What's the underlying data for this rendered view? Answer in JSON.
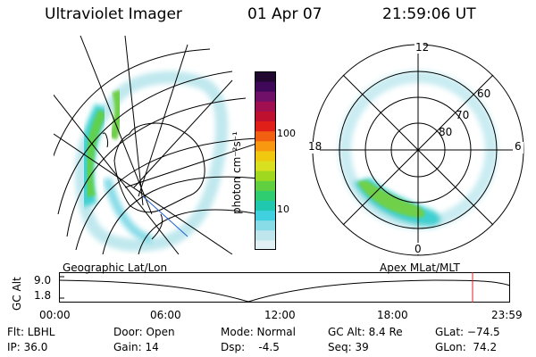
{
  "header": {
    "title": "Ultraviolet Imager",
    "date": "01 Apr 07",
    "time": "21:59:06 UT"
  },
  "colorbar": {
    "label": "photon cm⁻²s⁻¹",
    "ticks": [
      {
        "label": "100",
        "value": 100
      },
      {
        "label": "10",
        "value": 10
      }
    ],
    "colors": [
      "#e0f0f4",
      "#bfe6ec",
      "#88dce8",
      "#40d0e0",
      "#20c8b0",
      "#30cc70",
      "#60d040",
      "#a0d820",
      "#d8e020",
      "#f0c810",
      "#f89810",
      "#f06010",
      "#e02018",
      "#c01030",
      "#a01050",
      "#701068",
      "#400858",
      "#200830"
    ]
  },
  "geo_plot": {
    "label": "Geographic Lat/Lon"
  },
  "polar_plot": {
    "label": "Apex MLat/MLT",
    "mlt_labels": {
      "top": "12",
      "bottom": "0",
      "left": "18",
      "right": "6"
    },
    "lat_labels": [
      {
        "label": "60",
        "value": 60
      },
      {
        "label": "70",
        "value": 70
      },
      {
        "label": "80",
        "value": 80
      }
    ]
  },
  "timeline": {
    "ylabel": "GC Alt",
    "y_ticks": [
      "9.0",
      "1.8"
    ],
    "x_ticks": [
      "00:00",
      "06:00",
      "12:00",
      "18:00",
      "23:59"
    ],
    "current_time_marker": "21:59"
  },
  "footer": {
    "row1": [
      "Flt: LBHL",
      "Door: Open",
      "Mode: Normal",
      "GC Alt: 8.4 Re",
      "GLat: −74.5"
    ],
    "row2": [
      "IP: 36.0",
      "Gain: 14",
      "Dsp:    -4.5",
      "Seq: 39",
      "GLon:  74.2"
    ]
  }
}
